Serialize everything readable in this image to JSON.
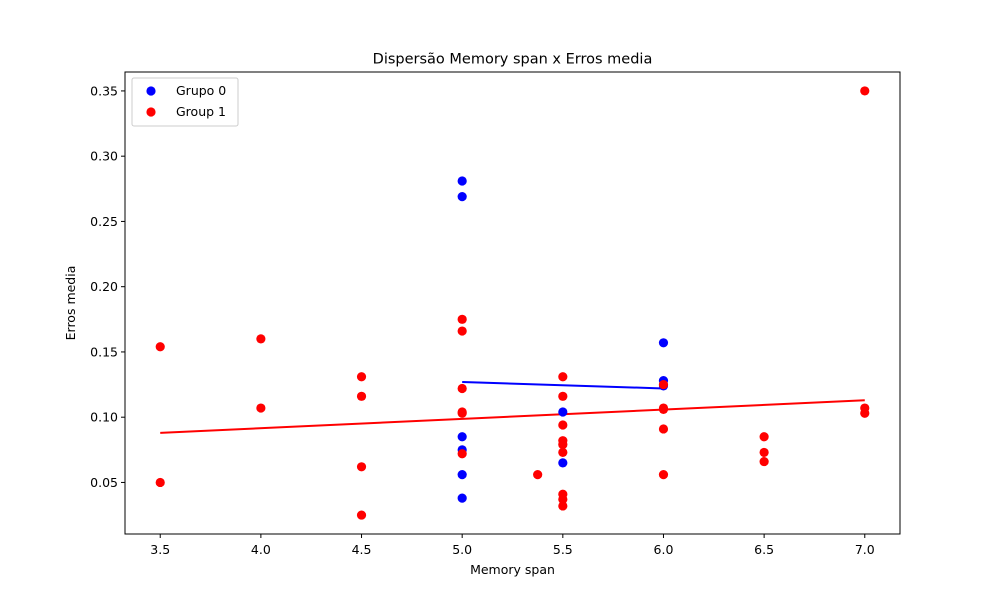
{
  "chart_data": {
    "type": "scatter",
    "title": "Dispersão Memory span x Erros media",
    "xlabel": "Memory span",
    "ylabel": "Erros media",
    "xlim": [
      3.325,
      7.175
    ],
    "ylim": [
      0.0105,
      0.3645
    ],
    "xticks": [
      3.5,
      4.0,
      4.5,
      5.0,
      5.5,
      6.0,
      6.5,
      7.0
    ],
    "xtick_labels": [
      "3.5",
      "4.0",
      "4.5",
      "5.0",
      "5.5",
      "6.0",
      "6.5",
      "7.0"
    ],
    "yticks": [
      0.05,
      0.1,
      0.15,
      0.2,
      0.25,
      0.3,
      0.35
    ],
    "ytick_labels": [
      "0.05",
      "0.10",
      "0.15",
      "0.20",
      "0.25",
      "0.30",
      "0.35"
    ],
    "grid": false,
    "legend_position": "top-left",
    "series": [
      {
        "name": "Grupo 0",
        "color": "#0000ff",
        "points": [
          [
            5.0,
            0.281
          ],
          [
            5.0,
            0.269
          ],
          [
            5.0,
            0.085
          ],
          [
            5.0,
            0.075
          ],
          [
            5.0,
            0.056
          ],
          [
            5.0,
            0.038
          ],
          [
            5.5,
            0.104
          ],
          [
            5.5,
            0.065
          ],
          [
            6.0,
            0.157
          ],
          [
            6.0,
            0.128
          ],
          [
            6.0,
            0.124
          ]
        ],
        "fit_line": [
          [
            5.0,
            0.127
          ],
          [
            6.0,
            0.122
          ]
        ]
      },
      {
        "name": "Group 1",
        "color": "#ff0000",
        "points": [
          [
            3.5,
            0.154
          ],
          [
            3.5,
            0.05
          ],
          [
            4.0,
            0.16
          ],
          [
            4.0,
            0.107
          ],
          [
            4.5,
            0.131
          ],
          [
            4.5,
            0.116
          ],
          [
            4.5,
            0.062
          ],
          [
            4.5,
            0.025
          ],
          [
            5.0,
            0.175
          ],
          [
            5.0,
            0.166
          ],
          [
            5.0,
            0.122
          ],
          [
            5.0,
            0.104
          ],
          [
            5.0,
            0.103
          ],
          [
            5.0,
            0.072
          ],
          [
            5.375,
            0.056
          ],
          [
            5.5,
            0.131
          ],
          [
            5.5,
            0.116
          ],
          [
            5.5,
            0.094
          ],
          [
            5.5,
            0.082
          ],
          [
            5.5,
            0.079
          ],
          [
            5.5,
            0.073
          ],
          [
            5.5,
            0.041
          ],
          [
            5.5,
            0.037
          ],
          [
            5.5,
            0.032
          ],
          [
            6.0,
            0.125
          ],
          [
            6.0,
            0.107
          ],
          [
            6.0,
            0.106
          ],
          [
            6.0,
            0.091
          ],
          [
            6.0,
            0.056
          ],
          [
            6.5,
            0.085
          ],
          [
            6.5,
            0.073
          ],
          [
            6.5,
            0.066
          ],
          [
            7.0,
            0.35
          ],
          [
            7.0,
            0.107
          ],
          [
            7.0,
            0.103
          ]
        ],
        "fit_line": [
          [
            3.5,
            0.088
          ],
          [
            7.0,
            0.113
          ]
        ]
      }
    ]
  }
}
